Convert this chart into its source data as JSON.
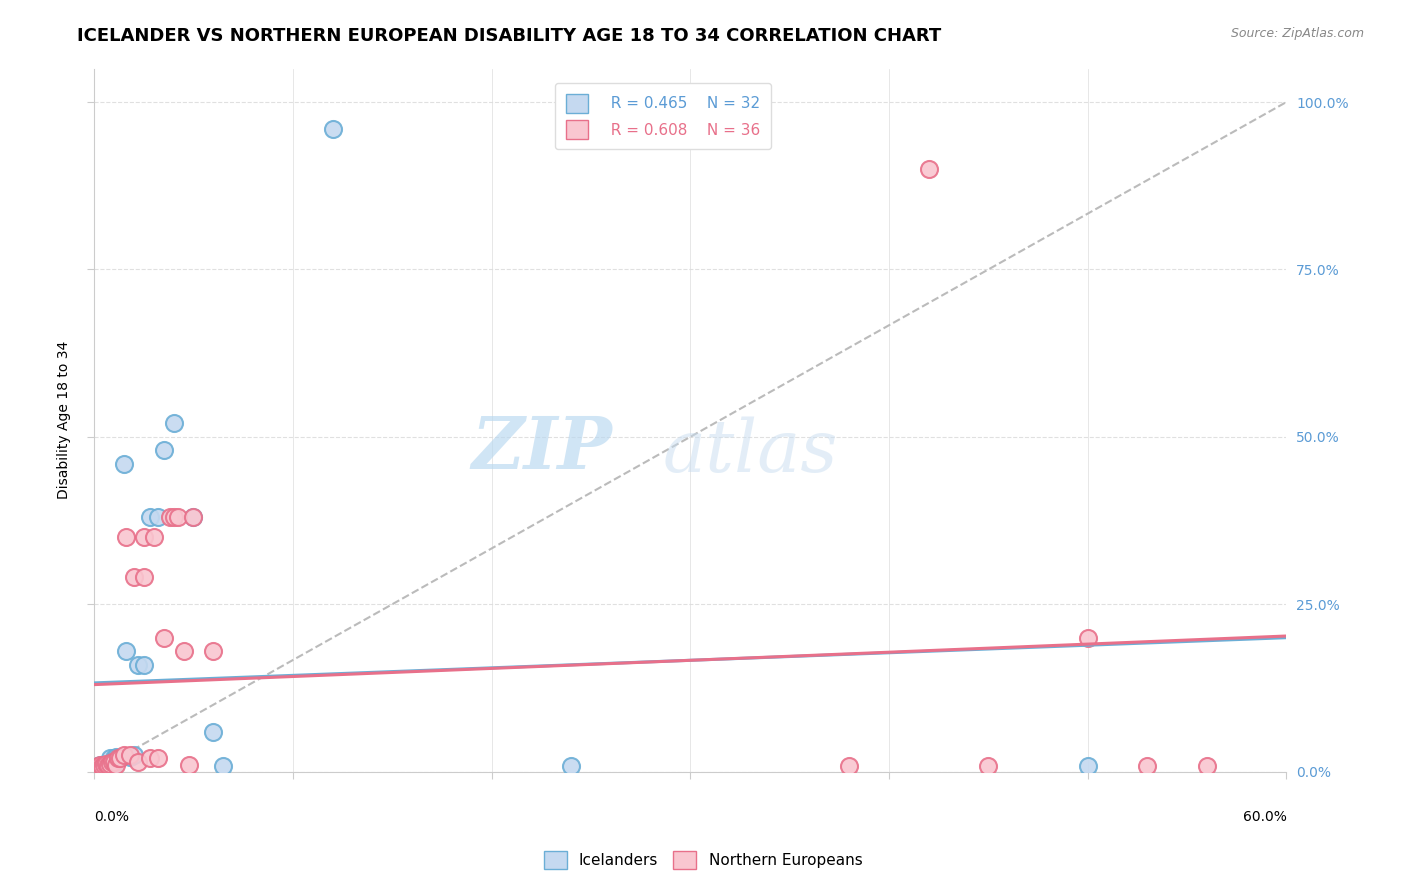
{
  "title": "ICELANDER VS NORTHERN EUROPEAN DISABILITY AGE 18 TO 34 CORRELATION CHART",
  "source": "Source: ZipAtlas.com",
  "ylabel": "Disability Age 18 to 34",
  "ytick_labels": [
    "0.0%",
    "25.0%",
    "50.0%",
    "75.0%",
    "100.0%"
  ],
  "ytick_values": [
    0.0,
    0.25,
    0.5,
    0.75,
    1.0
  ],
  "xlim": [
    0.0,
    0.6
  ],
  "ylim": [
    0.0,
    1.05
  ],
  "watermark_zip": "ZIP",
  "watermark_atlas": "atlas",
  "legend_icelandic_R": "R = 0.465",
  "legend_icelandic_N": "N = 32",
  "legend_northern_R": "R = 0.608",
  "legend_northern_N": "N = 36",
  "icelander_fill": "#c5d9f0",
  "icelander_edge": "#6baed6",
  "northern_fill": "#f9c6d0",
  "northern_edge": "#e8708a",
  "icelander_line": "#6baed6",
  "northern_line": "#e8708a",
  "dash_color": "#bbbbbb",
  "background_color": "#ffffff",
  "icelander_scatter_x": [
    0.002,
    0.003,
    0.004,
    0.005,
    0.005,
    0.006,
    0.006,
    0.007,
    0.008,
    0.008,
    0.009,
    0.01,
    0.01,
    0.011,
    0.012,
    0.013,
    0.015,
    0.016,
    0.018,
    0.02,
    0.022,
    0.025,
    0.028,
    0.032,
    0.035,
    0.04,
    0.05,
    0.06,
    0.065,
    0.12,
    0.24,
    0.5
  ],
  "icelander_scatter_y": [
    0.008,
    0.01,
    0.008,
    0.008,
    0.01,
    0.01,
    0.012,
    0.01,
    0.012,
    0.02,
    0.01,
    0.01,
    0.02,
    0.022,
    0.02,
    0.02,
    0.46,
    0.18,
    0.022,
    0.025,
    0.16,
    0.16,
    0.38,
    0.38,
    0.48,
    0.52,
    0.38,
    0.06,
    0.008,
    0.96,
    0.008,
    0.008
  ],
  "northern_scatter_x": [
    0.002,
    0.003,
    0.004,
    0.005,
    0.006,
    0.007,
    0.008,
    0.009,
    0.01,
    0.011,
    0.012,
    0.013,
    0.015,
    0.016,
    0.018,
    0.02,
    0.022,
    0.025,
    0.025,
    0.028,
    0.03,
    0.032,
    0.035,
    0.038,
    0.04,
    0.042,
    0.045,
    0.048,
    0.05,
    0.06,
    0.38,
    0.42,
    0.45,
    0.5,
    0.53,
    0.56
  ],
  "northern_scatter_y": [
    0.008,
    0.01,
    0.008,
    0.01,
    0.012,
    0.01,
    0.012,
    0.015,
    0.015,
    0.01,
    0.02,
    0.02,
    0.025,
    0.35,
    0.025,
    0.29,
    0.015,
    0.29,
    0.35,
    0.02,
    0.35,
    0.02,
    0.2,
    0.38,
    0.38,
    0.38,
    0.18,
    0.01,
    0.38,
    0.18,
    0.008,
    0.9,
    0.008,
    0.2,
    0.008,
    0.008
  ],
  "title_fontsize": 13,
  "axis_label_fontsize": 10,
  "tick_fontsize": 10,
  "legend_fontsize": 11,
  "source_fontsize": 9,
  "watermark_fontsize": 52
}
